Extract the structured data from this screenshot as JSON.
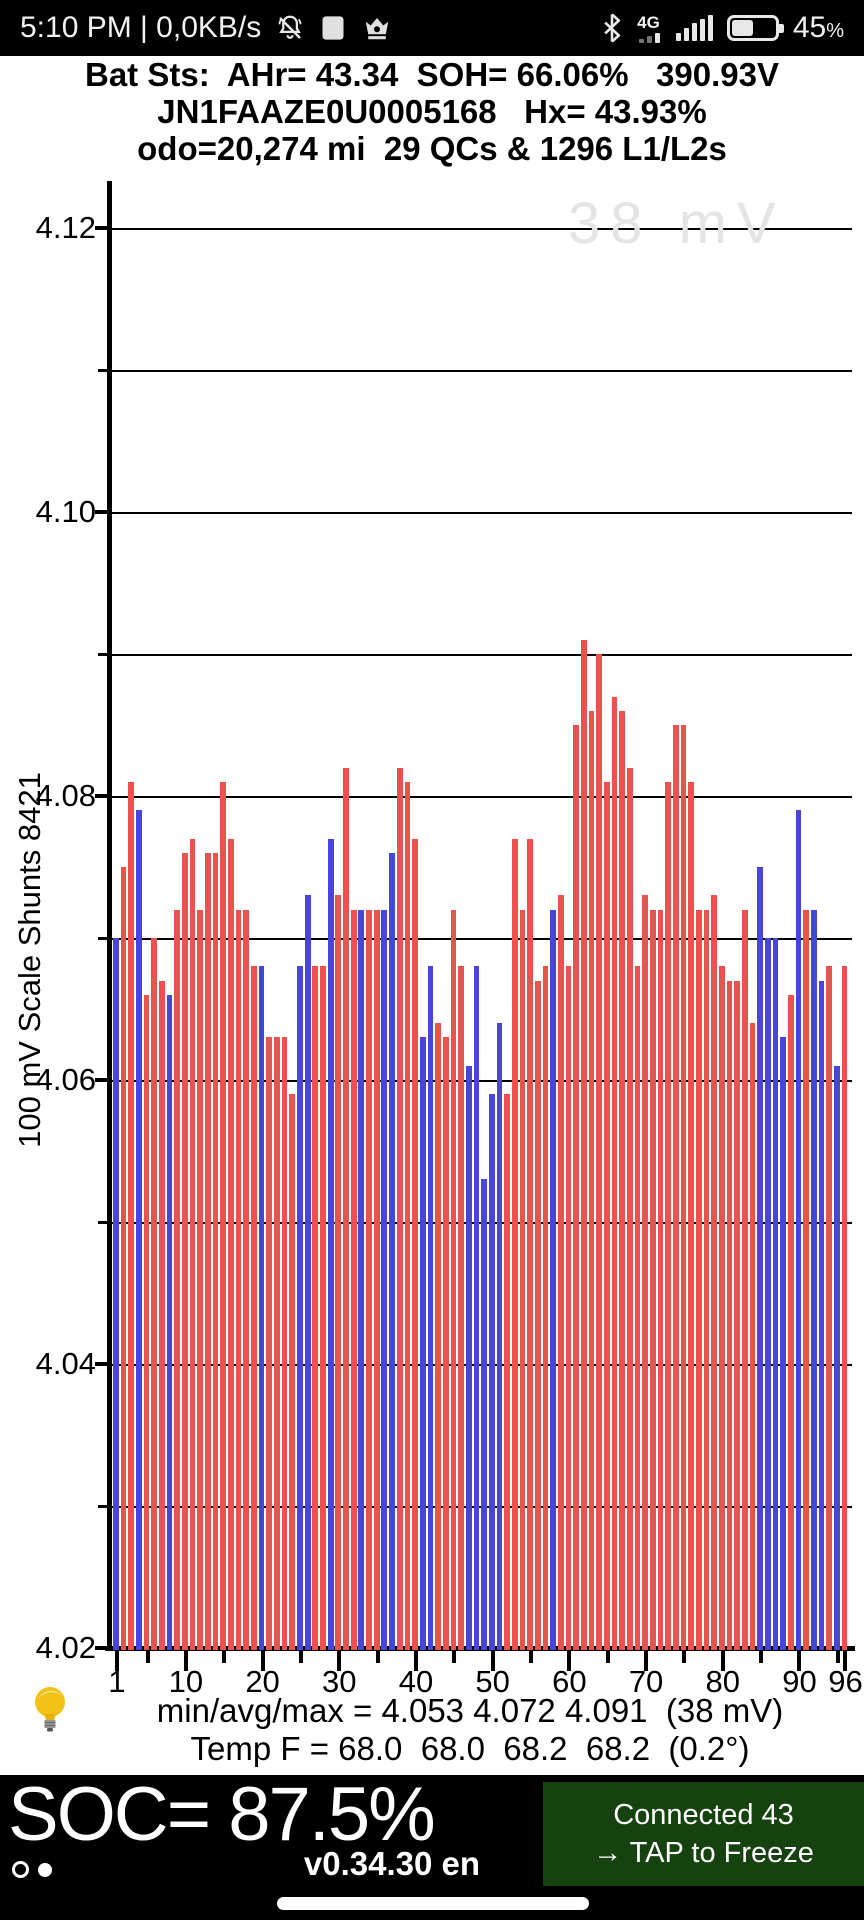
{
  "status_bar": {
    "left_text": "5:10 PM | 0,0KB/s",
    "network_type": "4G",
    "battery_pct": "45",
    "battery_pct_suffix": "%",
    "icons": [
      "muted-bell-icon",
      "app-square-icon",
      "crown-icon",
      "bluetooth-icon",
      "signal-bars-icon",
      "battery-icon"
    ]
  },
  "header": {
    "line1": "Bat Sts:  AHr= 43.34  SOH= 66.06%   390.93V",
    "line2": "JN1FAAZE0U0005168   Hx= 43.93%",
    "line3": "odo=20,274 mi  29 QCs & 1296 L1/L2s"
  },
  "chart_data": {
    "type": "bar",
    "title": "",
    "ylabel": "100 mV Scale   Shunts 8421",
    "xlabel": "",
    "ylim": [
      4.02,
      4.125
    ],
    "grid_step": 0.01,
    "grid": true,
    "ytick_values": [
      4.02,
      4.04,
      4.06,
      4.08,
      4.1,
      4.12
    ],
    "ytick_labels": [
      "4.02",
      "4.04",
      "4.06",
      "4.08",
      "4.10",
      "4.12"
    ],
    "minor_ytick_values": [
      4.03,
      4.05,
      4.07,
      4.09,
      4.11
    ],
    "xtick_values": [
      1,
      10,
      20,
      30,
      40,
      50,
      60,
      70,
      80,
      90,
      96
    ],
    "xtick_labels": [
      "1",
      "10",
      "20",
      "30",
      "40",
      "50",
      "60",
      "70",
      "80",
      "90",
      "96"
    ],
    "minor_xtick_values": [
      5,
      15,
      25,
      35,
      45,
      55,
      65,
      75,
      85,
      95
    ],
    "watermark": "38 mV",
    "cell_count": 96,
    "values": [
      4.07,
      4.075,
      4.081,
      4.079,
      4.066,
      4.07,
      4.067,
      4.066,
      4.072,
      4.076,
      4.077,
      4.072,
      4.076,
      4.076,
      4.081,
      4.077,
      4.072,
      4.072,
      4.068,
      4.068,
      4.063,
      4.063,
      4.063,
      4.059,
      4.068,
      4.073,
      4.068,
      4.068,
      4.077,
      4.073,
      4.082,
      4.072,
      4.072,
      4.072,
      4.072,
      4.072,
      4.076,
      4.082,
      4.081,
      4.077,
      4.063,
      4.068,
      4.064,
      4.063,
      4.072,
      4.068,
      4.061,
      4.068,
      4.053,
      4.059,
      4.064,
      4.059,
      4.077,
      4.072,
      4.077,
      4.067,
      4.068,
      4.072,
      4.073,
      4.068,
      4.085,
      4.091,
      4.086,
      4.09,
      4.081,
      4.087,
      4.086,
      4.082,
      4.068,
      4.073,
      4.072,
      4.072,
      4.081,
      4.085,
      4.085,
      4.081,
      4.072,
      4.072,
      4.073,
      4.068,
      4.067,
      4.067,
      4.072,
      4.064,
      4.075,
      4.07,
      4.07,
      4.063,
      4.066,
      4.079,
      4.072,
      4.072,
      4.067,
      4.068,
      4.061,
      4.068
    ],
    "shunt_cells": [
      1,
      4,
      8,
      20,
      25,
      26,
      29,
      33,
      36,
      37,
      41,
      42,
      47,
      48,
      49,
      50,
      51,
      58,
      85,
      86,
      87,
      88,
      90,
      92,
      93,
      95
    ],
    "colors": {
      "cell": "#e8534e",
      "shunt": "#4845d8",
      "axis": "#000000"
    }
  },
  "footer": {
    "stats_line": "min/avg/max = 4.053 4.072 4.091  (38 mV)",
    "temp_line": "Temp F = 68.0  68.0  68.2  68.2  (0.2°)"
  },
  "bottom_bar": {
    "soc": "SOC= 87.5%",
    "version": "v0.34.30 en",
    "connect_line1": "Connected 43",
    "connect_line2": "→ TAP to Freeze",
    "colors": {
      "background": "#000000",
      "connect_box": "#16420f",
      "text": "#ffffff"
    }
  }
}
